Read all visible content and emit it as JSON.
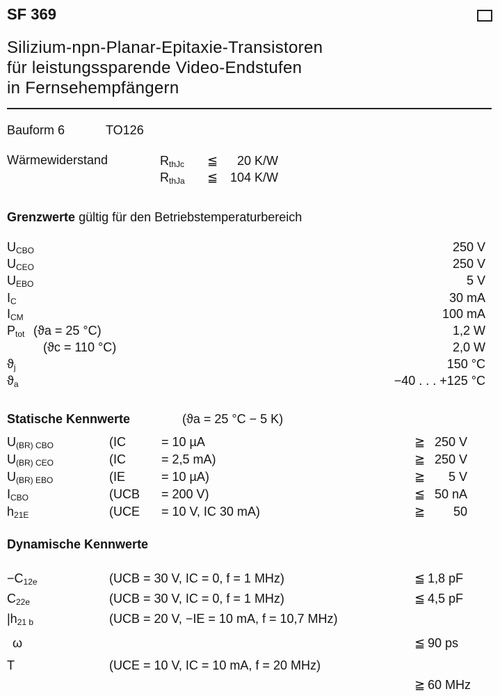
{
  "title": "SF 369",
  "subtitle": [
    "Silizium-npn-Planar-Epitaxie-Transistoren",
    "für leistungssparende Video-Endstufen",
    "in Fernsehempfängern"
  ],
  "bauform": {
    "label": "Bauform 6",
    "package": "TO126"
  },
  "thermal": {
    "label": "Wärmewiderstand",
    "rows": [
      {
        "sym": "R",
        "sub": "thJc",
        "rel": "≦",
        "value": "20 K/W"
      },
      {
        "sym": "R",
        "sub": "thJa",
        "rel": "≦",
        "value": "104 K/W"
      }
    ]
  },
  "limits": {
    "heading_bold": "Grenzwerte",
    "heading_rest": "gültig für den Betriebstemperaturbereich",
    "rows": [
      {
        "sym": "U",
        "sub": "CBO",
        "cond": "",
        "value": "250 V"
      },
      {
        "sym": "U",
        "sub": "CEO",
        "cond": "",
        "value": "250 V"
      },
      {
        "sym": "U",
        "sub": "EBO",
        "cond": "",
        "value": "5 V"
      },
      {
        "sym": "I",
        "sub": "C",
        "cond": "",
        "value": "30 mA"
      },
      {
        "sym": "I",
        "sub": "CM",
        "cond": "",
        "value": "100 mA"
      },
      {
        "sym": "P",
        "sub": "tot",
        "cond": "(ϑa = 25 °C)",
        "value": "1,2 W"
      },
      {
        "sym": "",
        "sub": "",
        "cond": "(ϑc = 110 °C)",
        "value": "2,0 W"
      },
      {
        "sym": "ϑ",
        "sub": "j",
        "cond": "",
        "value": "150 °C"
      },
      {
        "sym": "ϑ",
        "sub": "a",
        "cond": "",
        "value": "−40 . . . +125 °C"
      }
    ]
  },
  "static": {
    "heading": "Statische Kennwerte",
    "condition": "(ϑa = 25 °C − 5 K)",
    "rows": [
      {
        "sym": "U",
        "sub": "(BR) CBO",
        "par": "(IC",
        "eq": "= 10 µA",
        "rel": "≧",
        "value": "250 V"
      },
      {
        "sym": "U",
        "sub": "(BR) CEO",
        "par": "(IC",
        "eq": "= 2,5 mA)",
        "rel": "≧",
        "value": "250 V"
      },
      {
        "sym": "U",
        "sub": "(BR) EBO",
        "par": "(IE",
        "eq": "= 10 µA)",
        "rel": "≧",
        "value": "5 V"
      },
      {
        "sym": "I",
        "sub": "CBO",
        "par": "(UCB",
        "eq": "= 200 V)",
        "rel": "≦",
        "value": "50 nA"
      },
      {
        "sym": "h",
        "sub": "21E",
        "par": "(UCE",
        "eq": "= 10 V, IC 30 mA)",
        "rel": "≧",
        "value": "50"
      }
    ]
  },
  "dynamic": {
    "heading": "Dynamische Kennwerte",
    "rows": [
      {
        "sym": "−C",
        "sub": "12e",
        "cond": "(UCB = 30 V,   IC = 0, f = 1 MHz)",
        "rel": "≦",
        "value": "1,8 pF"
      },
      {
        "sym": "C",
        "sub": "22e",
        "cond": "(UCB = 30 V,   IC = 0, f = 1 MHz)",
        "rel": "≦",
        "value": "4,5 pF"
      },
      {
        "sym": "|h",
        "sub": "21 b",
        "cond": "(UCB = 20 V,  −IE = 10 mA, f = 10,7 MHz)",
        "rel": "",
        "value": ""
      },
      {
        "sym": "ω",
        "sub": "",
        "cond": "",
        "rel": "≦",
        "value": "90 ps"
      },
      {
        "sym": "T",
        "sub": "",
        "cond": "(UCE = 10 V, IC = 10 mA, f = 20 MHz)",
        "rel": "",
        "value": ""
      },
      {
        "sym": "",
        "sub": "",
        "cond": "",
        "rel": "≧",
        "value": "60 MHz"
      }
    ]
  }
}
